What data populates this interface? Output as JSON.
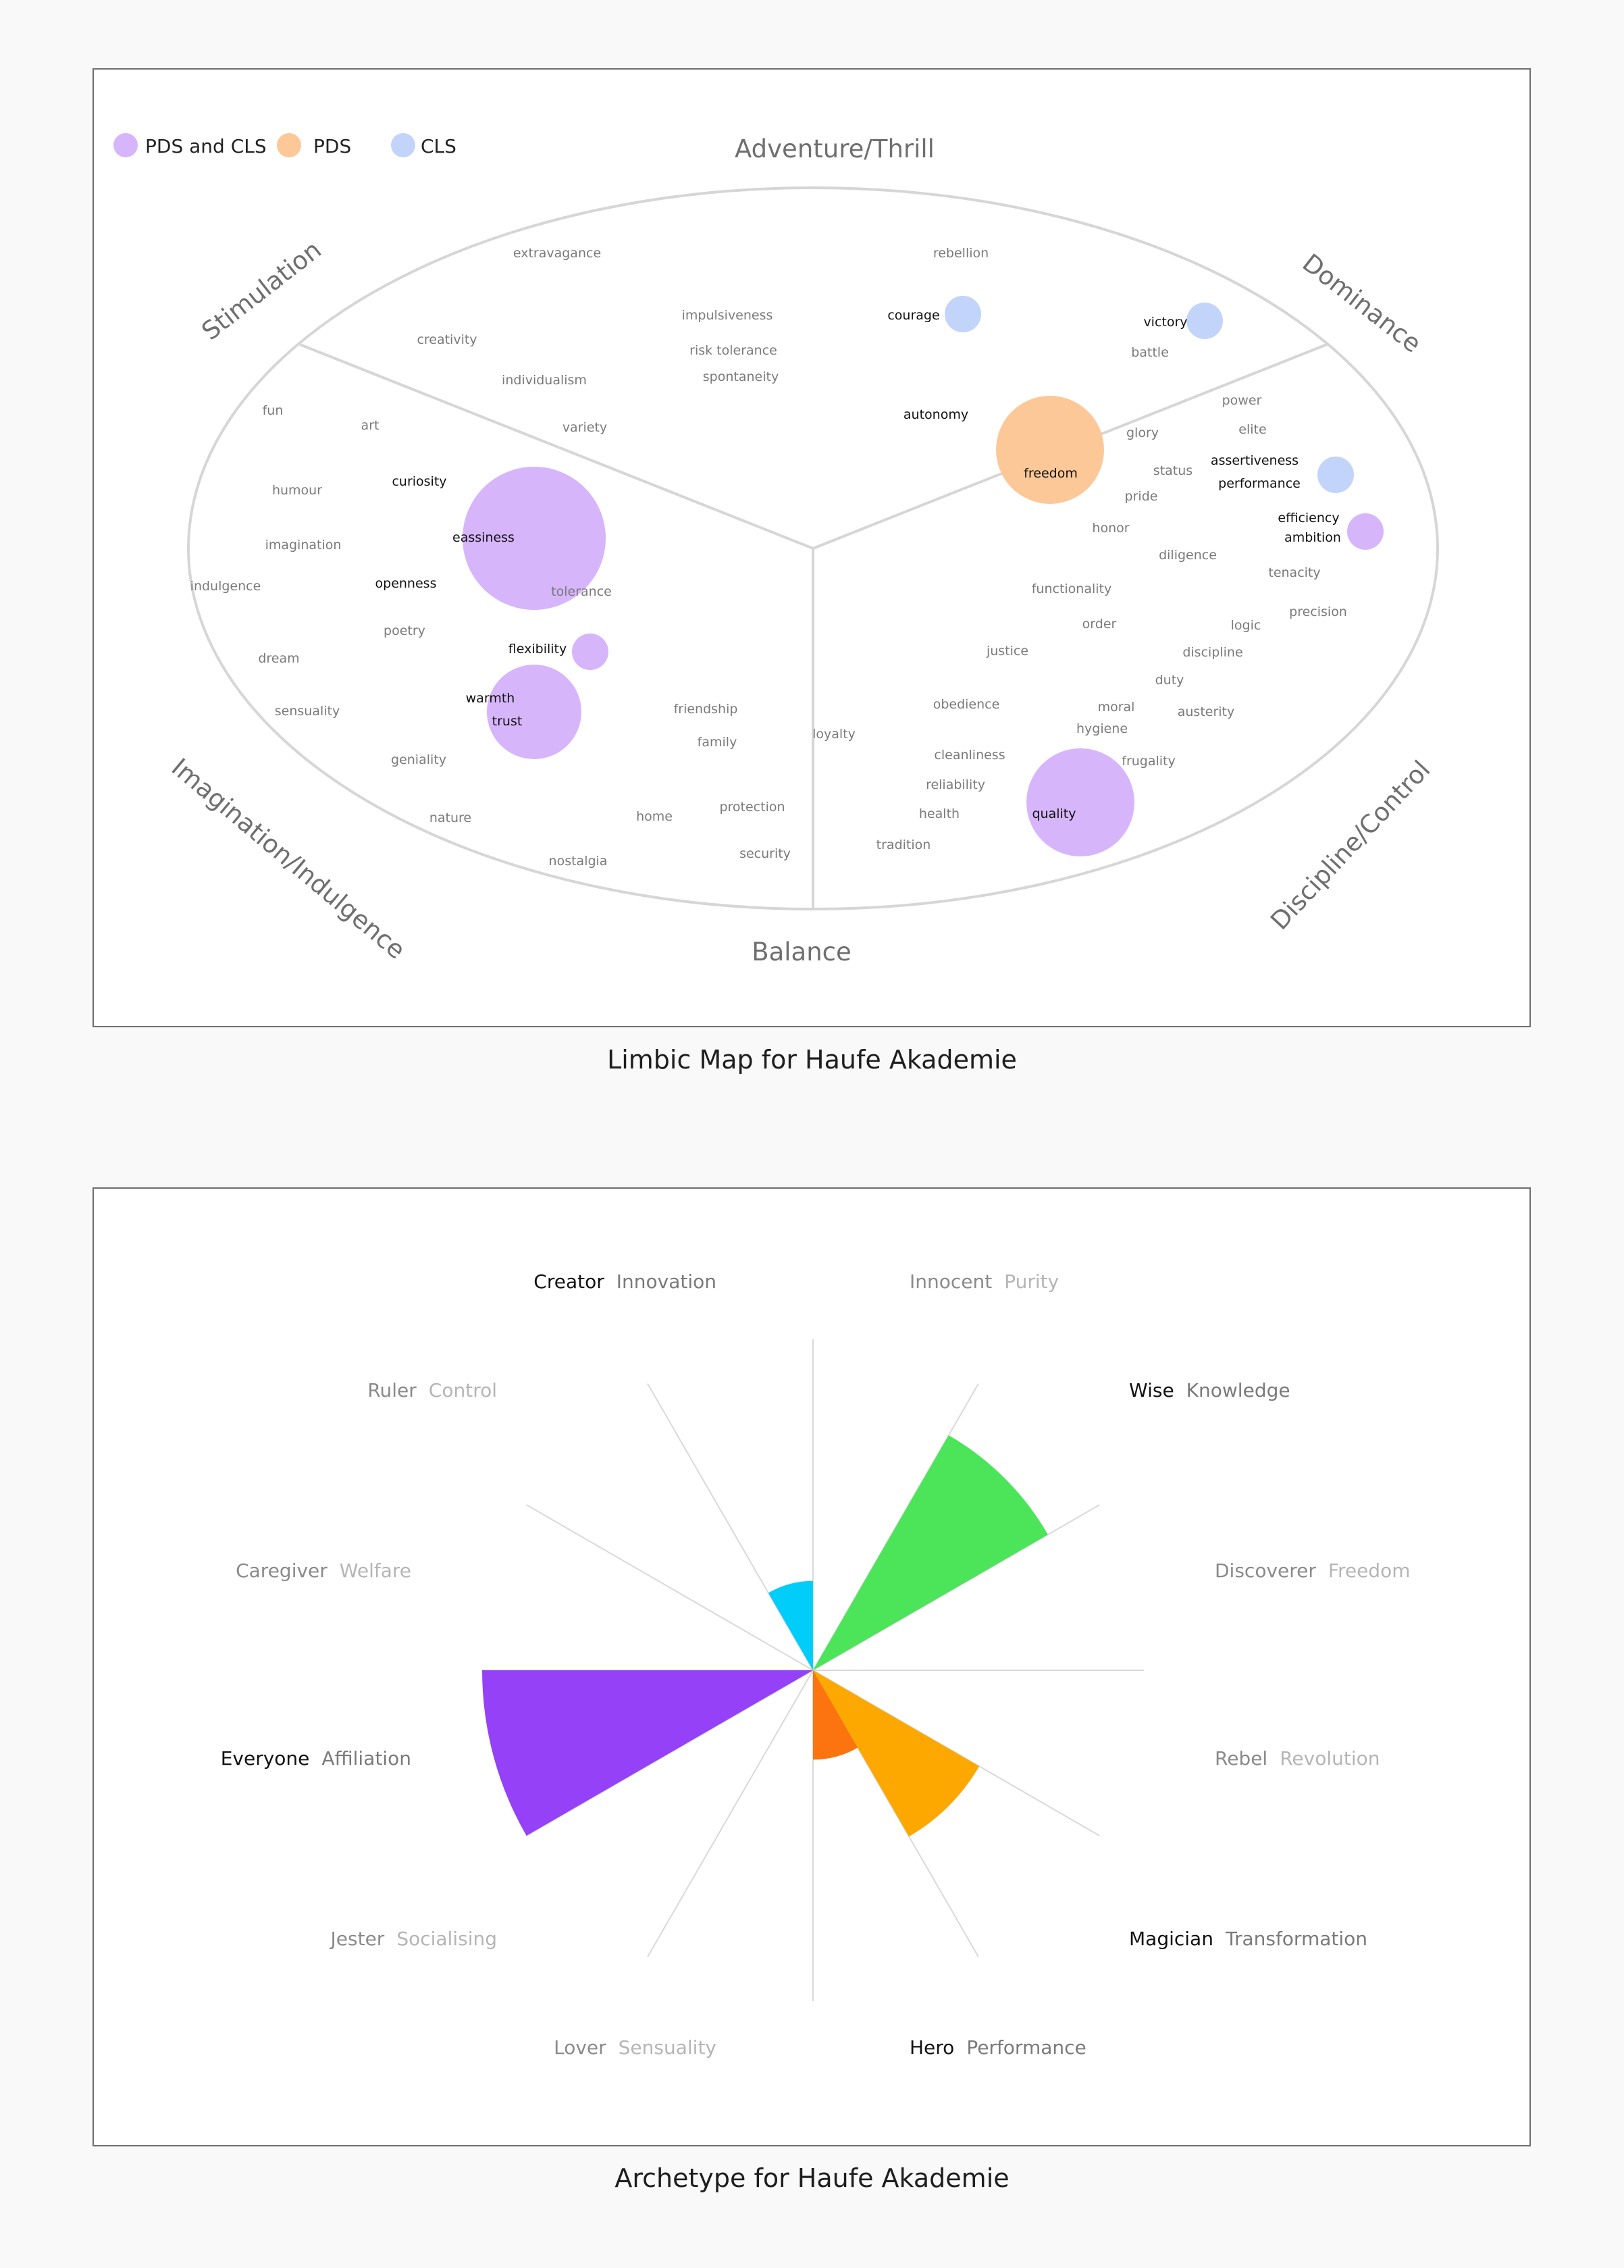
{
  "limbic_map": {
    "caption": "Limbic Map for Haufe Akademie",
    "legend": [
      {
        "label": "PDS and CLS",
        "color": "#d7b5fb"
      },
      {
        "label": "PDS",
        "color": "#fcc898"
      },
      {
        "label": "CLS",
        "color": "#c2d4fa"
      }
    ],
    "regions": [
      "Adventure/Thrill",
      "Stimulation",
      "Dominance",
      "Imagination/Indulgence",
      "Discipline/Control",
      "Balance"
    ],
    "words": [
      {
        "text": "extravagance",
        "bold": false
      },
      {
        "text": "rebellion",
        "bold": false
      },
      {
        "text": "impulsiveness",
        "bold": false
      },
      {
        "text": "courage",
        "bold": true
      },
      {
        "text": "victory",
        "bold": true
      },
      {
        "text": "creativity",
        "bold": false
      },
      {
        "text": "risk tolerance",
        "bold": false
      },
      {
        "text": "battle",
        "bold": false
      },
      {
        "text": "individualism",
        "bold": false
      },
      {
        "text": "spontaneity",
        "bold": false
      },
      {
        "text": "power",
        "bold": false
      },
      {
        "text": "fun",
        "bold": false
      },
      {
        "text": "autonomy",
        "bold": true
      },
      {
        "text": "art",
        "bold": false
      },
      {
        "text": "variety",
        "bold": false
      },
      {
        "text": "glory",
        "bold": false
      },
      {
        "text": "elite",
        "bold": false
      },
      {
        "text": "assertiveness",
        "bold": true
      },
      {
        "text": "status",
        "bold": false
      },
      {
        "text": "freedom",
        "bold": true
      },
      {
        "text": "curiosity",
        "bold": true
      },
      {
        "text": "performance",
        "bold": true
      },
      {
        "text": "humour",
        "bold": false
      },
      {
        "text": "pride",
        "bold": false
      },
      {
        "text": "efficiency",
        "bold": true
      },
      {
        "text": "eassiness",
        "bold": true
      },
      {
        "text": "honor",
        "bold": false
      },
      {
        "text": "ambition",
        "bold": true
      },
      {
        "text": "imagination",
        "bold": false
      },
      {
        "text": "diligence",
        "bold": false
      },
      {
        "text": "tenacity",
        "bold": false
      },
      {
        "text": "openness",
        "bold": true
      },
      {
        "text": "indulgence",
        "bold": false
      },
      {
        "text": "functionality",
        "bold": false
      },
      {
        "text": "tolerance",
        "bold": false
      },
      {
        "text": "precision",
        "bold": false
      },
      {
        "text": "order",
        "bold": false
      },
      {
        "text": "logic",
        "bold": false
      },
      {
        "text": "poetry",
        "bold": false
      },
      {
        "text": "flexibility",
        "bold": true
      },
      {
        "text": "justice",
        "bold": false
      },
      {
        "text": "discipline",
        "bold": false
      },
      {
        "text": "dream",
        "bold": false
      },
      {
        "text": "duty",
        "bold": false
      },
      {
        "text": "warmth",
        "bold": true
      },
      {
        "text": "obedience",
        "bold": false
      },
      {
        "text": "moral",
        "bold": false
      },
      {
        "text": "sensuality",
        "bold": false
      },
      {
        "text": "friendship",
        "bold": false
      },
      {
        "text": "austerity",
        "bold": false
      },
      {
        "text": "trust",
        "bold": true
      },
      {
        "text": "hygiene",
        "bold": false
      },
      {
        "text": "loyalty",
        "bold": false
      },
      {
        "text": "family",
        "bold": false
      },
      {
        "text": "cleanliness",
        "bold": false
      },
      {
        "text": "frugality",
        "bold": false
      },
      {
        "text": "geniality",
        "bold": false
      },
      {
        "text": "reliability",
        "bold": false
      },
      {
        "text": "protection",
        "bold": false
      },
      {
        "text": "health",
        "bold": false
      },
      {
        "text": "quality",
        "bold": true
      },
      {
        "text": "nature",
        "bold": false
      },
      {
        "text": "home",
        "bold": false
      },
      {
        "text": "tradition",
        "bold": false
      },
      {
        "text": "security",
        "bold": false
      },
      {
        "text": "nostalgia",
        "bold": false
      }
    ],
    "bubbles": [
      {
        "label": "eassiness",
        "group": "PDS and CLS",
        "size": 3
      },
      {
        "label": "freedom",
        "group": "PDS",
        "size": 3
      },
      {
        "label": "quality",
        "group": "PDS and CLS",
        "size": 3
      },
      {
        "label": "warmth / trust",
        "group": "PDS and CLS",
        "size": 2
      },
      {
        "label": "flexibility",
        "group": "PDS and CLS",
        "size": 1
      },
      {
        "label": "ambition",
        "group": "PDS and CLS",
        "size": 1
      },
      {
        "label": "courage",
        "group": "CLS",
        "size": 1
      },
      {
        "label": "victory",
        "group": "CLS",
        "size": 1
      },
      {
        "label": "assertiveness / performance",
        "group": "CLS",
        "size": 1
      }
    ]
  },
  "archetype": {
    "caption": "Archetype for Haufe Akademie",
    "max_value": 1.0,
    "archetypes": [
      {
        "name": "Innocent",
        "trait": "Purity",
        "highlight": false,
        "value": 0,
        "color": ""
      },
      {
        "name": "Wise",
        "trait": "Knowledge",
        "highlight": true,
        "value": 0.82,
        "color": "#4ce55a"
      },
      {
        "name": "Discoverer",
        "trait": "Freedom",
        "highlight": false,
        "value": 0,
        "color": ""
      },
      {
        "name": "Rebel",
        "trait": "Revolution",
        "highlight": false,
        "value": 0,
        "color": ""
      },
      {
        "name": "Magician",
        "trait": "Transformation",
        "highlight": true,
        "value": 0.58,
        "color": "#fda801"
      },
      {
        "name": "Hero",
        "trait": "Performance",
        "highlight": true,
        "value": 0.27,
        "color": "#fb740f"
      },
      {
        "name": "Lover",
        "trait": "Sensuality",
        "highlight": false,
        "value": 0,
        "color": ""
      },
      {
        "name": "Jester",
        "trait": "Socialising",
        "highlight": false,
        "value": 0,
        "color": ""
      },
      {
        "name": "Everyone",
        "trait": "Affiliation",
        "highlight": true,
        "value": 1.0,
        "color": "#9541f7"
      },
      {
        "name": "Caregiver",
        "trait": "Welfare",
        "highlight": false,
        "value": 0,
        "color": ""
      },
      {
        "name": "Ruler",
        "trait": "Control",
        "highlight": false,
        "value": 0,
        "color": ""
      },
      {
        "name": "Creator",
        "trait": "Innovation",
        "highlight": true,
        "value": 0.27,
        "color": "#01cdfb"
      }
    ]
  }
}
